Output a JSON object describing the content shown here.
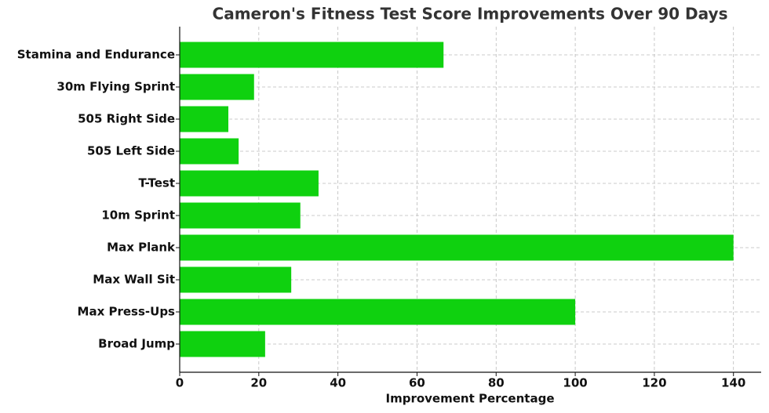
{
  "chart_data": {
    "type": "barh",
    "title": "Cameron's Fitness Test Score Improvements Over 90 Days",
    "x_label": "Improvement Percentage",
    "categories": [
      "Stamina and Endurance",
      "30m Flying Sprint",
      "505 Right Side",
      "505 Left Side",
      "T-Test",
      "10m Sprint",
      "Max Plank",
      "Max Wall Sit",
      "Max Press-Ups",
      "Broad Jump"
    ],
    "values": [
      66.7,
      18.8,
      12.3,
      14.9,
      35.1,
      30.5,
      140,
      28.2,
      100,
      21.6
    ],
    "color": "#0fd10f",
    "xlim": [
      0,
      147
    ],
    "xticks": [
      0,
      20,
      40,
      60,
      80,
      100,
      120,
      140
    ],
    "grid": true
  }
}
